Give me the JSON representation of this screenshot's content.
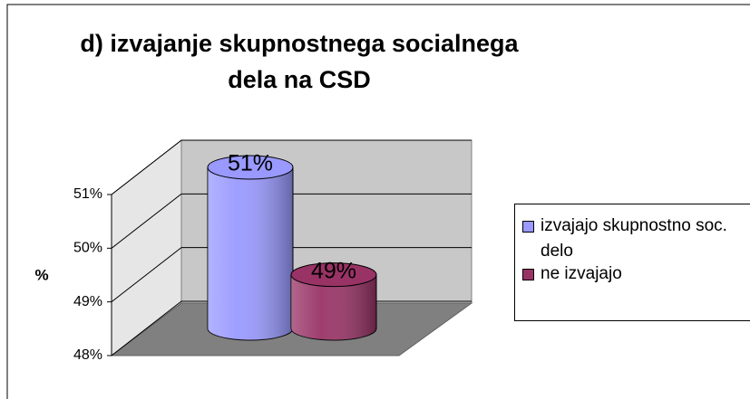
{
  "chart_data": {
    "type": "bar",
    "title": "d) izvajanje skupnostnega socialnega dela na CSD",
    "y_label": "%",
    "categories": [
      null
    ],
    "series": [
      {
        "name": "izvajajo skupnostno soc. delo",
        "color": "#9999ff",
        "values": [
          51
        ],
        "value_labels": [
          "51%"
        ]
      },
      {
        "name": "ne izvajajo",
        "color": "#993366",
        "values": [
          49
        ],
        "value_labels": [
          "49%"
        ]
      }
    ],
    "ylim": [
      48,
      51
    ],
    "yticks": [
      {
        "value": 48,
        "label": "48%"
      },
      {
        "value": 49,
        "label": "49%"
      },
      {
        "value": 50,
        "label": "50%"
      },
      {
        "value": 51,
        "label": "51%"
      }
    ],
    "grid": true,
    "legend": "right"
  }
}
